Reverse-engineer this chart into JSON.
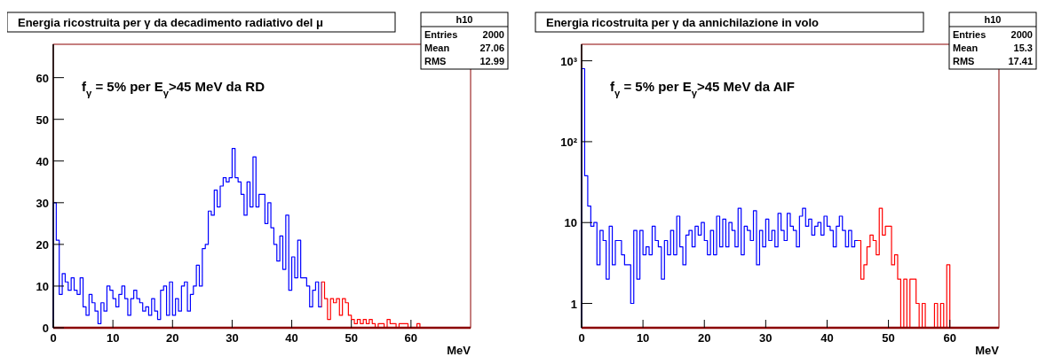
{
  "chart_data": [
    {
      "type": "histogram",
      "title": "Energia ricostruita per γ da decadimento radiativo del μ",
      "xlabel": "MeV",
      "xlim": [
        0,
        70
      ],
      "ylim": [
        0,
        68
      ],
      "xticks": [
        0,
        10,
        20,
        30,
        40,
        50,
        60
      ],
      "yticks": [
        0,
        10,
        20,
        30,
        40,
        50,
        60
      ],
      "bins": [
        0,
        0.5,
        1,
        1.5,
        2,
        2.5,
        3,
        3.5,
        4,
        4.5,
        5,
        5.5,
        6,
        6.5,
        7,
        7.5,
        8,
        8.5,
        9,
        9.5,
        10,
        10.5,
        11,
        11.5,
        12,
        12.5,
        13,
        13.5,
        14,
        14.5,
        15,
        15.5,
        16,
        16.5,
        17,
        17.5,
        18,
        18.5,
        19,
        19.5,
        20,
        20.5,
        21,
        21.5,
        22,
        22.5,
        23,
        23.5,
        24,
        24.5,
        25,
        25.5,
        26,
        26.5,
        27,
        27.5,
        28,
        28.5,
        29,
        29.5,
        30,
        30.5,
        31,
        31.5,
        32,
        32.5,
        33,
        33.5,
        34,
        34.5,
        35,
        35.5,
        36,
        36.5,
        37,
        37.5,
        38,
        38.5,
        39,
        39.5,
        40,
        40.5,
        41,
        41.5,
        42,
        42.5,
        43,
        43.5,
        44,
        44.5,
        45,
        45.5,
        46,
        46.5,
        47,
        47.5,
        48,
        48.5,
        49,
        49.5,
        50,
        50.5,
        51,
        51.5,
        52,
        52.5,
        53,
        53.5,
        54,
        54.5,
        55,
        55.5,
        56,
        56.5,
        57,
        57.5,
        58,
        58.5,
        59,
        59.5,
        60,
        60.5,
        61,
        61.5
      ],
      "values": [
        30,
        21,
        8,
        13,
        11,
        9,
        12,
        9,
        8,
        12,
        5,
        3,
        8,
        6,
        4,
        1,
        6,
        4,
        10,
        9,
        7,
        5,
        8,
        10,
        7,
        3,
        7,
        9,
        7,
        6,
        4,
        5,
        3,
        7,
        4,
        2,
        9,
        10,
        3,
        11,
        3,
        7,
        4,
        10,
        11,
        4,
        8,
        10,
        15,
        10,
        19,
        20,
        28,
        27,
        33,
        29,
        34,
        36,
        35,
        36,
        43,
        36,
        35,
        32,
        27,
        35,
        29,
        41,
        29,
        32,
        32,
        25,
        30,
        24,
        20,
        16,
        22,
        14,
        27,
        9,
        17,
        12,
        21,
        12,
        12,
        10,
        5,
        9,
        11,
        5,
        11,
        7,
        2,
        7,
        6,
        7,
        3,
        7,
        6,
        3,
        2,
        1,
        2,
        1,
        2,
        1,
        2,
        1,
        0,
        1,
        1,
        0,
        2,
        1,
        1,
        0,
        1,
        1,
        1,
        0,
        0,
        0,
        1
      ],
      "colors": [
        "#0000ff",
        "#0000ff",
        "#0000ff",
        "#0000ff",
        "#0000ff",
        "#0000ff",
        "#0000ff",
        "#0000ff",
        "#0000ff",
        "#0000ff",
        "#0000ff",
        "#0000ff",
        "#0000ff",
        "#0000ff",
        "#0000ff",
        "#0000ff",
        "#0000ff",
        "#0000ff",
        "#0000ff",
        "#0000ff",
        "#0000ff",
        "#0000ff",
        "#0000ff",
        "#0000ff",
        "#0000ff",
        "#0000ff",
        "#0000ff",
        "#0000ff",
        "#0000ff",
        "#0000ff",
        "#0000ff",
        "#0000ff",
        "#0000ff",
        "#0000ff",
        "#0000ff",
        "#0000ff",
        "#0000ff",
        "#0000ff",
        "#0000ff",
        "#0000ff",
        "#0000ff",
        "#0000ff",
        "#0000ff",
        "#0000ff",
        "#0000ff",
        "#0000ff",
        "#0000ff",
        "#0000ff",
        "#0000ff",
        "#0000ff",
        "#0000ff",
        "#0000ff",
        "#0000ff",
        "#0000ff",
        "#0000ff",
        "#0000ff",
        "#0000ff",
        "#0000ff",
        "#0000ff",
        "#0000ff",
        "#0000ff",
        "#0000ff",
        "#0000ff",
        "#0000ff",
        "#0000ff",
        "#0000ff",
        "#0000ff",
        "#0000ff",
        "#0000ff",
        "#0000ff",
        "#0000ff",
        "#0000ff",
        "#0000ff",
        "#0000ff",
        "#0000ff",
        "#0000ff",
        "#0000ff",
        "#0000ff",
        "#0000ff",
        "#0000ff",
        "#0000ff",
        "#0000ff",
        "#0000ff",
        "#0000ff",
        "#0000ff",
        "#0000ff",
        "#0000ff",
        "#0000ff",
        "#0000ff",
        "#0000ff",
        "#ff0000",
        "#ff0000",
        "#ff0000",
        "#ff0000",
        "#ff0000",
        "#ff0000",
        "#ff0000",
        "#ff0000",
        "#ff0000",
        "#ff0000",
        "#ff0000",
        "#ff0000",
        "#ff0000",
        "#ff0000",
        "#ff0000",
        "#ff0000",
        "#ff0000",
        "#ff0000",
        "#ff0000",
        "#ff0000",
        "#ff0000",
        "#ff0000",
        "#ff0000",
        "#ff0000",
        "#ff0000",
        "#ff0000",
        "#ff0000",
        "#ff0000",
        "#ff0000",
        "#ff0000",
        "#ff0000",
        "#ff0000",
        "#ff0000"
      ],
      "annotations": [
        "f$_{γ}$ = 5% per E$_{γ}$>45 MeV da RD",
        "h10",
        "Entries",
        "2000",
        "Mean",
        "27.06",
        "RMS",
        "12.99"
      ]
    },
    {
      "type": "histogram",
      "title": "Energia ricostruita per γ da annichilazione in volo",
      "xlabel": "MeV",
      "xlim": [
        0,
        68
      ],
      "ylim": [
        0.5,
        1600
      ],
      "log": "y",
      "xticks": [
        0,
        10,
        20,
        30,
        40,
        50,
        60
      ],
      "yticks": [
        1,
        10,
        {
          "value": 100,
          "label": "10²"
        },
        {
          "value": 1000,
          "label": "10³"
        }
      ],
      "bins": [
        0,
        0.5,
        1,
        1.5,
        2,
        2.5,
        3,
        3.5,
        4,
        4.5,
        5,
        5.5,
        6,
        6.5,
        7,
        7.5,
        8,
        8.5,
        9,
        9.5,
        10,
        10.5,
        11,
        11.5,
        12,
        12.5,
        13,
        13.5,
        14,
        14.5,
        15,
        15.5,
        16,
        16.5,
        17,
        17.5,
        18,
        18.5,
        19,
        19.5,
        20,
        20.5,
        21,
        21.5,
        22,
        22.5,
        23,
        23.5,
        24,
        24.5,
        25,
        25.5,
        26,
        26.5,
        27,
        27.5,
        28,
        28.5,
        29,
        29.5,
        30,
        30.5,
        31,
        31.5,
        32,
        32.5,
        33,
        33.5,
        34,
        34.5,
        35,
        35.5,
        36,
        36.5,
        37,
        37.5,
        38,
        38.5,
        39,
        39.5,
        40,
        40.5,
        41,
        41.5,
        42,
        42.5,
        43,
        43.5,
        44,
        44.5,
        45,
        45.5,
        46,
        46.5,
        47,
        47.5,
        48,
        48.5,
        49,
        49.5,
        50,
        50.5,
        51,
        51.5,
        52,
        52.5,
        53,
        53.5,
        54,
        54.5,
        55,
        55.5,
        56,
        56.5,
        57,
        57.5,
        58,
        58.5,
        59,
        59.5,
        60
      ],
      "values": [
        800,
        38,
        16,
        9,
        10,
        3,
        8,
        6,
        2,
        9,
        3,
        6,
        6,
        4,
        3,
        3,
        1,
        8,
        2,
        8,
        4,
        5,
        4,
        9,
        6,
        5,
        2,
        6,
        4,
        8,
        4,
        12,
        5,
        3,
        7,
        8,
        5,
        9,
        7,
        10,
        6,
        4,
        8,
        4,
        12,
        5,
        11,
        5,
        10,
        8,
        5,
        15,
        4,
        9,
        8,
        6,
        14,
        3,
        8,
        5,
        11,
        6,
        8,
        5,
        13,
        8,
        6,
        13,
        9,
        8,
        5,
        12,
        15,
        9,
        11,
        7,
        9,
        10,
        7,
        12,
        9,
        8,
        5,
        9,
        12,
        8,
        5,
        8,
        5,
        6,
        6,
        2,
        3,
        5,
        7,
        6,
        4,
        15,
        7,
        9,
        9,
        3,
        4,
        2,
        null,
        2,
        null,
        2,
        2,
        1,
        null,
        1,
        null,
        null,
        null,
        1,
        null,
        1,
        null,
        3
      ],
      "colors": [
        "#0000ff",
        "#0000ff",
        "#0000ff",
        "#0000ff",
        "#0000ff",
        "#0000ff",
        "#0000ff",
        "#0000ff",
        "#0000ff",
        "#0000ff",
        "#0000ff",
        "#0000ff",
        "#0000ff",
        "#0000ff",
        "#0000ff",
        "#0000ff",
        "#0000ff",
        "#0000ff",
        "#0000ff",
        "#0000ff",
        "#0000ff",
        "#0000ff",
        "#0000ff",
        "#0000ff",
        "#0000ff",
        "#0000ff",
        "#0000ff",
        "#0000ff",
        "#0000ff",
        "#0000ff",
        "#0000ff",
        "#0000ff",
        "#0000ff",
        "#0000ff",
        "#0000ff",
        "#0000ff",
        "#0000ff",
        "#0000ff",
        "#0000ff",
        "#0000ff",
        "#0000ff",
        "#0000ff",
        "#0000ff",
        "#0000ff",
        "#0000ff",
        "#0000ff",
        "#0000ff",
        "#0000ff",
        "#0000ff",
        "#0000ff",
        "#0000ff",
        "#0000ff",
        "#0000ff",
        "#0000ff",
        "#0000ff",
        "#0000ff",
        "#0000ff",
        "#0000ff",
        "#0000ff",
        "#0000ff",
        "#0000ff",
        "#0000ff",
        "#0000ff",
        "#0000ff",
        "#0000ff",
        "#0000ff",
        "#0000ff",
        "#0000ff",
        "#0000ff",
        "#0000ff",
        "#0000ff",
        "#0000ff",
        "#0000ff",
        "#0000ff",
        "#0000ff",
        "#0000ff",
        "#0000ff",
        "#0000ff",
        "#0000ff",
        "#0000ff",
        "#0000ff",
        "#0000ff",
        "#0000ff",
        "#0000ff",
        "#0000ff",
        "#0000ff",
        "#0000ff",
        "#0000ff",
        "#0000ff",
        "#0000ff",
        "#ff0000",
        "#ff0000",
        "#ff0000",
        "#ff0000",
        "#ff0000",
        "#ff0000",
        "#ff0000",
        "#ff0000",
        "#ff0000",
        "#ff0000",
        "#ff0000",
        "#ff0000",
        "#ff0000",
        "#ff0000",
        "#ff0000",
        "#ff0000",
        "#ff0000",
        "#ff0000",
        "#ff0000",
        "#ff0000",
        "#ff0000",
        "#ff0000",
        "#ff0000",
        "#ff0000",
        "#ff0000",
        "#ff0000",
        "#ff0000",
        "#ff0000",
        "#ff0000",
        "#ff0000"
      ],
      "annotations": [
        "f$_{γ}$ = 5% per E$_{γ}$>45 MeV da AIF",
        "h10",
        "Entries",
        "2000",
        "Mean",
        "15.3",
        "RMS",
        "17.41"
      ]
    }
  ]
}
